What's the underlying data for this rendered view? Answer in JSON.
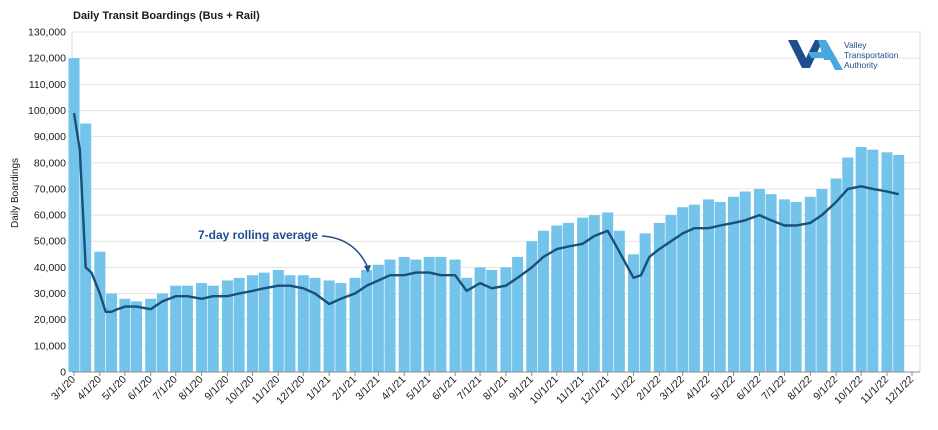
{
  "chart_data": {
    "type": "bar",
    "title": "Daily Transit Boardings (Bus + Rail)",
    "ylabel": "Daily Boardings",
    "xlabel": "",
    "ylim": [
      0,
      130000
    ],
    "yticks": [
      "0",
      "10,000",
      "20,000",
      "30,000",
      "40,000",
      "50,000",
      "60,000",
      "70,000",
      "80,000",
      "90,000",
      "100,000",
      "110,000",
      "120,000",
      "130,000"
    ],
    "xticks": [
      "3/1/20",
      "4/1/20",
      "5/1/20",
      "6/1/20",
      "7/1/20",
      "8/1/20",
      "9/1/20",
      "10/1/20",
      "11/1/20",
      "12/1/20",
      "1/1/21",
      "2/1/21",
      "3/1/21",
      "4/1/21",
      "5/1/21",
      "6/1/21",
      "7/1/21",
      "8/1/21",
      "9/1/21",
      "10/1/21",
      "11/1/21",
      "12/1/21",
      "1/1/22",
      "2/1/22",
      "3/1/22",
      "4/1/22",
      "5/1/22",
      "6/1/22",
      "7/1/22",
      "8/1/22",
      "9/1/22",
      "10/1/22",
      "11/1/22",
      "12/1/22"
    ],
    "bar_color": "#74c3ea",
    "line_color": "#1a4f7a",
    "series": [
      {
        "name": "Daily boardings",
        "x": [
          "3/1/20",
          "3/15/20",
          "4/1/20",
          "4/15/20",
          "5/1/20",
          "5/15/20",
          "6/1/20",
          "6/15/20",
          "7/1/20",
          "7/15/20",
          "8/1/20",
          "8/15/20",
          "9/1/20",
          "9/15/20",
          "10/1/20",
          "10/15/20",
          "11/1/20",
          "11/15/20",
          "12/1/20",
          "12/15/20",
          "1/1/21",
          "1/15/21",
          "2/1/21",
          "2/15/21",
          "3/1/21",
          "3/15/21",
          "4/1/21",
          "4/15/21",
          "5/1/21",
          "5/15/21",
          "6/1/21",
          "6/15/21",
          "7/1/21",
          "7/15/21",
          "8/1/21",
          "8/15/21",
          "9/1/21",
          "9/15/21",
          "10/1/21",
          "10/15/21",
          "11/1/21",
          "11/15/21",
          "12/1/21",
          "12/15/21",
          "1/1/22",
          "1/15/22",
          "2/1/22",
          "2/15/22",
          "3/1/22",
          "3/15/22",
          "4/1/22",
          "4/15/22",
          "5/1/22",
          "5/15/22",
          "6/1/22",
          "6/15/22",
          "7/1/22",
          "7/15/22",
          "8/1/22",
          "8/15/22",
          "9/1/22",
          "9/15/22",
          "10/1/22",
          "10/15/22",
          "11/1/22",
          "11/15/22"
        ],
        "values": [
          120000,
          95000,
          46000,
          30000,
          28000,
          27000,
          28000,
          30000,
          33000,
          33000,
          34000,
          33000,
          35000,
          36000,
          37000,
          38000,
          39000,
          37000,
          37000,
          36000,
          35000,
          34000,
          36000,
          39000,
          41000,
          43000,
          44000,
          43000,
          44000,
          44000,
          43000,
          36000,
          40000,
          39000,
          40000,
          44000,
          50000,
          54000,
          56000,
          57000,
          59000,
          60000,
          61000,
          54000,
          45000,
          53000,
          57000,
          60000,
          63000,
          64000,
          66000,
          65000,
          67000,
          69000,
          70000,
          68000,
          66000,
          65000,
          67000,
          70000,
          74000,
          82000,
          86000,
          85000,
          84000,
          83000
        ]
      },
      {
        "name": "7-day rolling average",
        "x": [
          "3/1/20",
          "3/8/20",
          "3/15/20",
          "3/22/20",
          "4/1/20",
          "4/8/20",
          "4/15/20",
          "4/22/20",
          "5/1/20",
          "5/15/20",
          "6/1/20",
          "6/15/20",
          "7/1/20",
          "7/15/20",
          "8/1/20",
          "8/15/20",
          "9/1/20",
          "9/15/20",
          "10/1/20",
          "10/15/20",
          "11/1/20",
          "11/15/20",
          "12/1/20",
          "12/15/20",
          "1/1/21",
          "1/15/21",
          "2/1/21",
          "2/15/21",
          "3/1/21",
          "3/15/21",
          "4/1/21",
          "4/15/21",
          "5/1/21",
          "5/15/21",
          "6/1/21",
          "6/15/21",
          "7/1/21",
          "7/15/21",
          "8/1/21",
          "8/15/21",
          "9/1/21",
          "9/15/21",
          "10/1/21",
          "10/15/21",
          "11/1/21",
          "11/15/21",
          "12/1/21",
          "12/8/21",
          "12/15/21",
          "1/1/22",
          "1/10/22",
          "1/20/22",
          "2/1/22",
          "2/15/22",
          "3/1/22",
          "3/15/22",
          "4/1/22",
          "4/15/22",
          "5/1/22",
          "5/15/22",
          "6/1/22",
          "6/15/22",
          "7/1/22",
          "7/15/22",
          "8/1/22",
          "8/15/22",
          "9/1/22",
          "9/15/22",
          "10/1/22",
          "10/15/22",
          "11/1/22",
          "11/15/22"
        ],
        "values": [
          99000,
          85000,
          40000,
          38000,
          30000,
          23000,
          23000,
          24000,
          25000,
          25000,
          24000,
          27000,
          29000,
          29000,
          28000,
          29000,
          29000,
          30000,
          31000,
          32000,
          33000,
          33000,
          32000,
          30000,
          26000,
          28000,
          30000,
          33000,
          35000,
          37000,
          37000,
          38000,
          38000,
          37000,
          37000,
          31000,
          34000,
          32000,
          33000,
          36000,
          40000,
          44000,
          47000,
          48000,
          49000,
          52000,
          54000,
          50000,
          46000,
          36000,
          37000,
          44000,
          47000,
          50000,
          53000,
          55000,
          55000,
          56000,
          57000,
          58000,
          60000,
          58000,
          56000,
          56000,
          57000,
          60000,
          65000,
          70000,
          71000,
          70000,
          69000,
          68000
        ]
      }
    ],
    "annotation": "7-day rolling average",
    "grid": true,
    "legend": "none"
  },
  "logo": {
    "name": "Valley Transportation Authority",
    "line1": "Valley",
    "line2": "Transportation",
    "line3": "Authority",
    "colors": [
      "#1f4e8c",
      "#4aa8e0"
    ]
  }
}
